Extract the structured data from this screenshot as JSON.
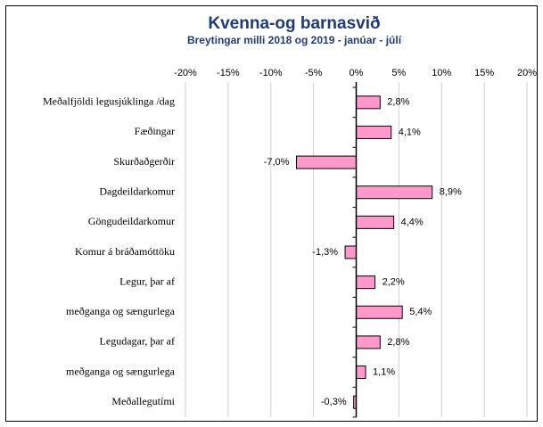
{
  "chart_data": {
    "type": "bar",
    "orientation": "horizontal",
    "title": "Kvenna-og barnasvið",
    "subtitle": "Breytingar milli 2018 og 2019 - janúar  - júlí",
    "categories": [
      "Meðalfjöldi legusjúklinga /dag",
      "Fæðingar",
      "Skurðaðgerðir",
      "Dagdeildarkomur",
      "Göngudeildarkomur",
      "Komur á bráðamóttöku",
      "Legur, þar af",
      "meðganga og sængurlega",
      "Legudagar, þar af",
      "meðganga og sængurlega",
      "Meðallegutími"
    ],
    "values": [
      2.8,
      4.1,
      -7.0,
      8.9,
      4.4,
      -1.3,
      2.2,
      5.4,
      2.8,
      1.1,
      -0.3
    ],
    "value_labels": [
      "2,8%",
      "4,1%",
      "-7,0%",
      "8,9%",
      "4,4%",
      "-1,3%",
      "2,2%",
      "5,4%",
      "2,8%",
      "1,1%",
      "-0,3%"
    ],
    "color": "#ff99cc",
    "xlim": [
      -20,
      20
    ],
    "xticks": [
      {
        "value": -20,
        "label": "-20%"
      },
      {
        "value": -15,
        "label": "-15%"
      },
      {
        "value": -10,
        "label": "-10%"
      },
      {
        "value": -5,
        "label": "-5%"
      },
      {
        "value": 0,
        "label": "0%"
      },
      {
        "value": 5,
        "label": "5%"
      },
      {
        "value": 10,
        "label": "10%"
      },
      {
        "value": 15,
        "label": "15%"
      },
      {
        "value": 20,
        "label": "20%"
      }
    ],
    "grid": true
  }
}
